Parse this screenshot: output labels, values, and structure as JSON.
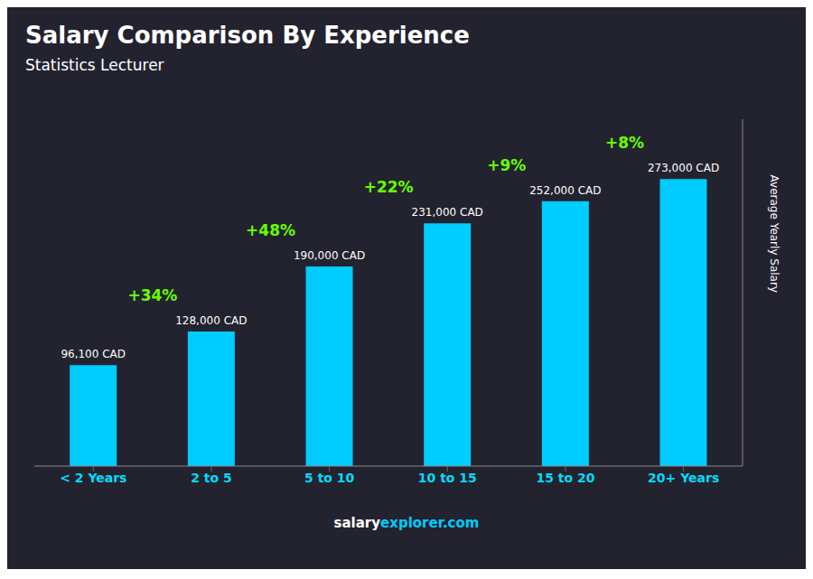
{
  "chart_data": {
    "type": "bar",
    "title": "Salary Comparison By Experience",
    "subtitle": "Statistics Lecturer",
    "categories": [
      "< 2 Years",
      "2 to 5",
      "5 to 10",
      "10 to 15",
      "15 to 20",
      "20+ Years"
    ],
    "values": [
      96100,
      128000,
      190000,
      231000,
      252000,
      273000
    ],
    "value_labels": [
      "96,100 CAD",
      "128,000 CAD",
      "190,000 CAD",
      "231,000 CAD",
      "252,000 CAD",
      "273,000 CAD"
    ],
    "data_labels": true,
    "color": "#00CCFF",
    "ylim": [
      0,
      330000
    ],
    "ylabel": "Average Yearly Salary",
    "tick_labels": "x",
    "grid": false,
    "annotations": [
      {
        "text": "+34%",
        "color": "#66FF00"
      },
      {
        "text": "+48%",
        "color": "#66FF00"
      },
      {
        "text": "+22%",
        "color": "#66FF00"
      },
      {
        "text": "+9%",
        "color": "#66FF00"
      },
      {
        "text": "+8%",
        "color": "#66FF00"
      }
    ],
    "footer": [
      {
        "text": "salary",
        "color": "#ffffff"
      },
      {
        "text": "explorer.com",
        "color": "#00CCFF"
      }
    ]
  }
}
